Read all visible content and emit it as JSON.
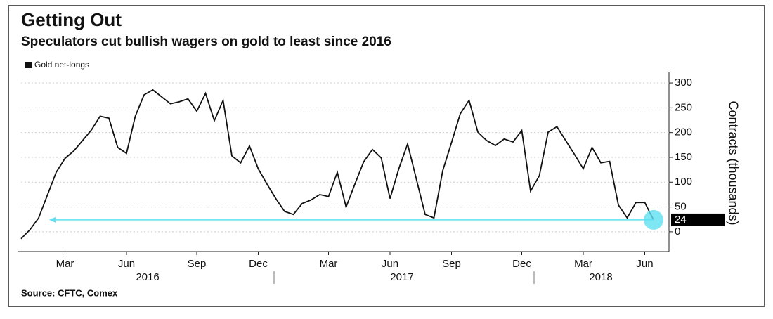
{
  "chart_data": {
    "type": "line",
    "title": "Getting Out",
    "subtitle": "Speculators cut bullish wagers on gold to least since 2016",
    "y_label": "Contracts (thousands)",
    "source": "Source: CFTC, Comex",
    "categories": [
      null,
      null,
      null,
      null,
      null,
      "Mar",
      null,
      null,
      null,
      null,
      null,
      null,
      "Jun",
      null,
      null,
      null,
      null,
      null,
      null,
      null,
      "Sep",
      null,
      null,
      null,
      null,
      null,
      null,
      "Dec",
      null,
      null,
      null,
      null,
      null,
      null,
      null,
      "Mar",
      null,
      null,
      null,
      null,
      null,
      null,
      "Jun",
      null,
      null,
      null,
      null,
      null,
      null,
      "Sep",
      null,
      null,
      null,
      null,
      null,
      null,
      null,
      "Dec",
      null,
      null,
      null,
      null,
      null,
      null,
      "Mar",
      null,
      null,
      null,
      null,
      null,
      null,
      "Jun",
      null
    ],
    "years": [
      "2016",
      "2017",
      "2018"
    ],
    "series": [
      {
        "name": "Gold net-longs",
        "color": "#111111",
        "values": [
          -14,
          4,
          28,
          74,
          120,
          148,
          163,
          184,
          205,
          233,
          229,
          170,
          158,
          233,
          276,
          286,
          272,
          258,
          262,
          268,
          243,
          279,
          224,
          265,
          153,
          139,
          173,
          127,
          96,
          67,
          41,
          35,
          57,
          64,
          75,
          71,
          120,
          50,
          96,
          141,
          166,
          149,
          67,
          127,
          177,
          106,
          35,
          28,
          123,
          180,
          238,
          265,
          201,
          184,
          174,
          187,
          181,
          204,
          82,
          113,
          201,
          212,
          184,
          156,
          127,
          170,
          139,
          142,
          54,
          28,
          59,
          59,
          24
        ]
      }
    ],
    "ylim": [
      -20,
      310
    ],
    "yticks": [
      0,
      50,
      100,
      150,
      200,
      250,
      300
    ],
    "grid": true,
    "highlight_color": "#5fe0f0"
  }
}
